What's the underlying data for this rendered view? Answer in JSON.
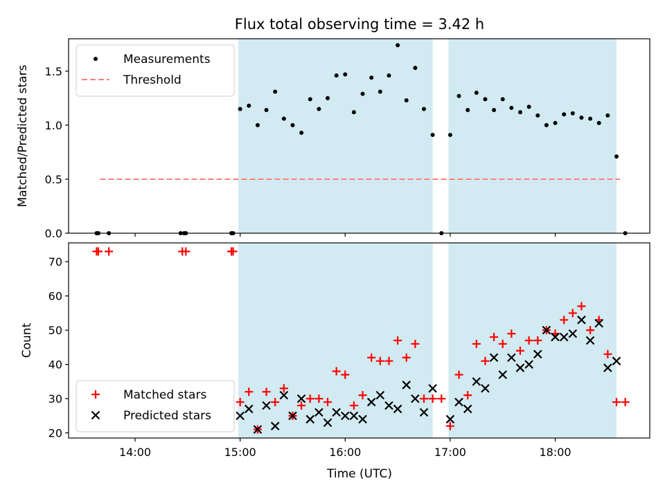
{
  "chart_data": {
    "title": "Flux total observing time = 3.42 h",
    "shaded_spans": [
      [
        "14:59",
        "16:50"
      ],
      [
        "16:59",
        "18:35"
      ]
    ],
    "shade_color": "#add8e6",
    "xlabel": "Time (UTC)",
    "xticks": [
      "14:00",
      "15:00",
      "16:00",
      "17:00",
      "18:00"
    ],
    "xlim": [
      "13:22",
      "18:54"
    ],
    "panels": [
      {
        "type": "scatter",
        "ylabel": "Matched/Predicted stars",
        "ylim": [
          0,
          1.8
        ],
        "yticks": [
          "0.0",
          "0.5",
          "1.0",
          "1.5"
        ],
        "grid": false,
        "legend_position": "top-left",
        "series": [
          {
            "name": "Measurements",
            "marker": "dot",
            "color": "#000000",
            "x": [
              "13:38",
              "13:39",
              "13:45",
              "14:26",
              "14:28",
              "14:29",
              "14:55",
              "14:56",
              "15:00",
              "15:05",
              "15:10",
              "15:15",
              "15:20",
              "15:25",
              "15:30",
              "15:35",
              "15:40",
              "15:45",
              "15:50",
              "15:55",
              "16:00",
              "16:05",
              "16:10",
              "16:15",
              "16:20",
              "16:25",
              "16:30",
              "16:35",
              "16:40",
              "16:45",
              "16:50",
              "16:55",
              "17:00",
              "17:05",
              "17:10",
              "17:15",
              "17:20",
              "17:25",
              "17:30",
              "17:35",
              "17:40",
              "17:45",
              "17:50",
              "17:55",
              "18:00",
              "18:05",
              "18:10",
              "18:15",
              "18:20",
              "18:25",
              "18:30",
              "18:35",
              "18:40"
            ],
            "y": [
              0,
              0,
              0,
              0,
              0,
              0,
              0,
              0,
              1.15,
              1.18,
              1.0,
              1.14,
              1.31,
              1.06,
              1.0,
              0.93,
              1.24,
              1.15,
              1.25,
              1.46,
              1.47,
              1.12,
              1.29,
              1.44,
              1.31,
              1.46,
              1.74,
              1.23,
              1.53,
              1.15,
              0.91,
              0.0,
              0.91,
              1.27,
              1.14,
              1.3,
              1.24,
              1.14,
              1.24,
              1.16,
              1.12,
              1.17,
              1.09,
              1.0,
              1.02,
              1.1,
              1.11,
              1.07,
              1.06,
              1.02,
              1.09,
              0.71,
              0.0
            ]
          },
          {
            "name": "Threshold",
            "marker": "dashed-line",
            "color": "#ff7f7f",
            "x": [
              "13:40",
              "18:37"
            ],
            "y": [
              0.5,
              0.5
            ]
          }
        ]
      },
      {
        "type": "scatter",
        "ylabel": "Count",
        "ylim": [
          18.5,
          75.5
        ],
        "yticks": [
          "20",
          "30",
          "40",
          "50",
          "60",
          "70"
        ],
        "grid": false,
        "legend_position": "bottom-left",
        "series": [
          {
            "name": "Matched stars",
            "marker": "plus",
            "color": "#ff0000",
            "x": [
              "13:38",
              "13:39",
              "13:45",
              "14:27",
              "14:29",
              "14:55",
              "14:56",
              "15:00",
              "15:05",
              "15:10",
              "15:15",
              "15:20",
              "15:25",
              "15:30",
              "15:35",
              "15:40",
              "15:45",
              "15:50",
              "15:55",
              "16:00",
              "16:05",
              "16:10",
              "16:15",
              "16:20",
              "16:25",
              "16:30",
              "16:35",
              "16:40",
              "16:45",
              "16:50",
              "16:55",
              "17:00",
              "17:05",
              "17:10",
              "17:15",
              "17:20",
              "17:25",
              "17:30",
              "17:35",
              "17:40",
              "17:45",
              "17:50",
              "17:55",
              "18:00",
              "18:05",
              "18:10",
              "18:15",
              "18:20",
              "18:25",
              "18:30",
              "18:35",
              "18:40"
            ],
            "y": [
              73,
              73,
              73,
              73,
              73,
              73,
              73,
              29,
              32,
              21,
              32,
              29,
              33,
              25,
              28,
              30,
              30,
              29,
              38,
              37,
              28,
              31,
              42,
              41,
              41,
              47,
              42,
              46,
              30,
              30,
              30,
              22,
              37,
              31,
              46,
              41,
              48,
              46,
              49,
              44,
              47,
              47,
              50,
              49,
              53,
              55,
              57,
              50,
              53,
              43,
              29,
              29
            ]
          },
          {
            "name": "Predicted stars",
            "marker": "x",
            "color": "#000000",
            "x": [
              "15:00",
              "15:05",
              "15:10",
              "15:15",
              "15:20",
              "15:25",
              "15:30",
              "15:35",
              "15:40",
              "15:45",
              "15:50",
              "15:55",
              "16:00",
              "16:05",
              "16:10",
              "16:15",
              "16:20",
              "16:25",
              "16:30",
              "16:35",
              "16:40",
              "16:45",
              "16:50",
              "17:00",
              "17:05",
              "17:10",
              "17:15",
              "17:20",
              "17:25",
              "17:30",
              "17:35",
              "17:40",
              "17:45",
              "17:50",
              "17:55",
              "18:00",
              "18:05",
              "18:10",
              "18:15",
              "18:20",
              "18:25",
              "18:30",
              "18:35"
            ],
            "y": [
              25,
              27,
              21,
              28,
              22,
              31,
              25,
              30,
              24,
              26,
              23,
              26,
              25,
              25,
              24,
              29,
              31,
              28,
              27,
              34,
              30,
              26,
              33,
              24,
              29,
              27,
              35,
              33,
              42,
              37,
              42,
              39,
              40,
              43,
              50,
              48,
              48,
              49,
              53,
              47,
              52,
              39,
              41
            ]
          }
        ]
      }
    ]
  }
}
